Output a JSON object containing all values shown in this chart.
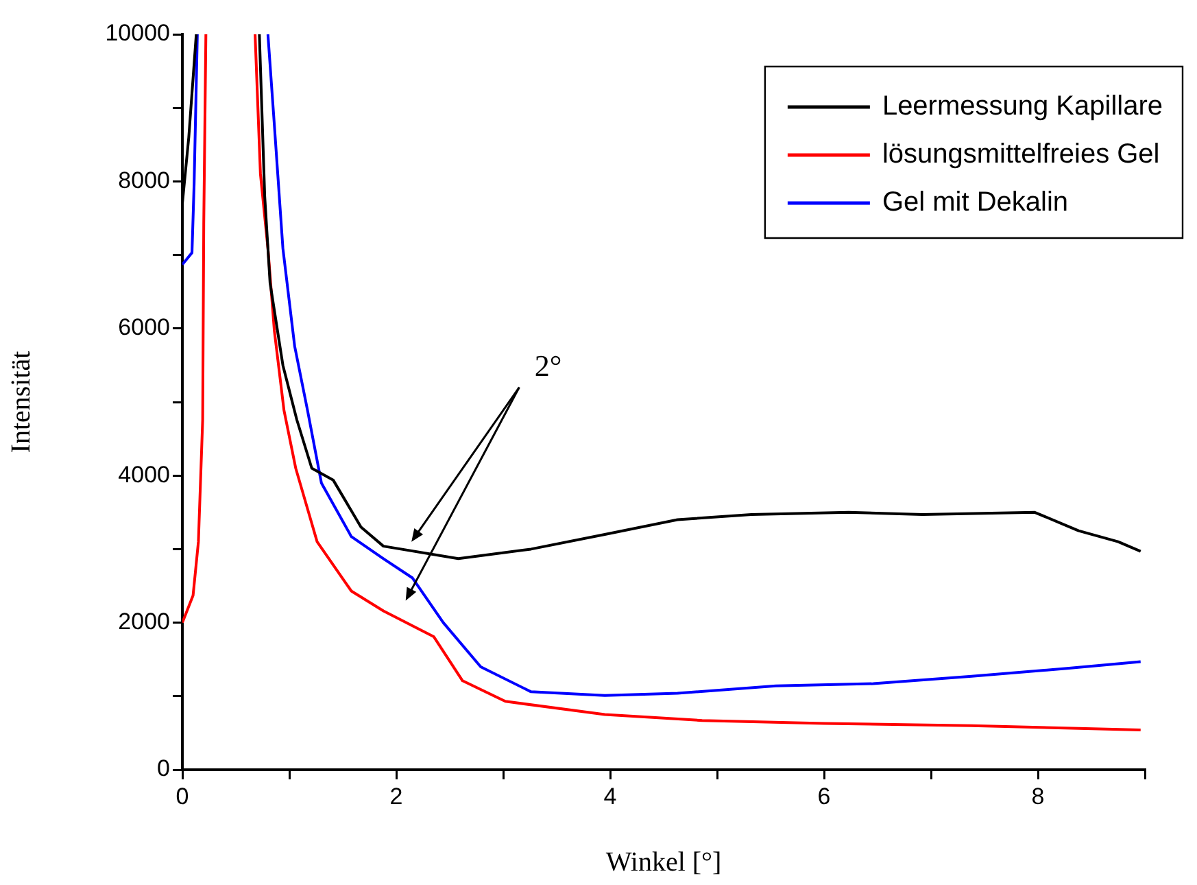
{
  "chart_data": {
    "type": "line",
    "xlabel": "Winkel [°]",
    "ylabel": "Intensität",
    "xlim": [
      0,
      9
    ],
    "xticks": [
      0,
      {
        "value": 1,
        "label": null
      },
      2,
      {
        "value": 3,
        "label": null
      },
      4,
      {
        "value": 5,
        "label": null
      },
      6,
      {
        "value": 7,
        "label": null
      },
      8,
      {
        "value": 9,
        "label": null
      }
    ],
    "ylim": [
      0,
      10000
    ],
    "yticks": [
      0,
      {
        "value": 1000,
        "label": null
      },
      2000,
      {
        "value": 3000,
        "label": null
      },
      4000,
      {
        "value": 5000,
        "label": null
      },
      6000,
      {
        "value": 7000,
        "label": null
      },
      8000,
      {
        "value": 9000,
        "label": null
      },
      10000
    ],
    "grid": false,
    "legend": "top right",
    "marker": "none",
    "line_style": "solid",
    "annotations": [
      "2°"
    ],
    "series": [
      {
        "name": "Leermessung Kapillare",
        "color": "#000000",
        "x": [
          0,
          0.06,
          0.13,
          0.4,
          0.72,
          0.77,
          0.82,
          0.94,
          1.07,
          1.21,
          1.41,
          1.67,
          1.88,
          2.58,
          3.26,
          3.95,
          4.63,
          5.32,
          6.23,
          6.92,
          7.97,
          8.38,
          8.75,
          8.96
        ],
        "values": [
          7700,
          8600,
          10000,
          null,
          10000,
          7800,
          6620,
          5500,
          4760,
          4100,
          3940,
          3300,
          3040,
          2870,
          3000,
          3200,
          3400,
          3470,
          3500,
          3470,
          3500,
          3250,
          3100,
          2970
        ]
      },
      {
        "name": "lösungsmittelfreies Gel",
        "color": "#ff0000",
        "x": [
          0,
          0.1,
          0.15,
          0.19,
          0.2,
          0.22,
          0.45,
          0.68,
          0.73,
          0.8,
          0.86,
          0.95,
          1.06,
          1.26,
          1.58,
          1.88,
          2.35,
          2.62,
          3.02,
          3.95,
          4.86,
          6.0,
          7.38,
          8.96
        ],
        "values": [
          2000,
          2370,
          3100,
          4760,
          7420,
          10000,
          null,
          10000,
          8100,
          7090,
          5970,
          4890,
          4100,
          3100,
          2430,
          2160,
          1810,
          1210,
          930,
          750,
          670,
          630,
          600,
          540
        ]
      },
      {
        "name": "Gel mit Dekalin",
        "color": "#0000ff",
        "x": [
          0,
          0.09,
          0.11,
          0.14,
          0.45,
          0.8,
          0.86,
          0.94,
          1.05,
          1.17,
          1.3,
          1.58,
          1.88,
          2.15,
          2.44,
          2.79,
          3.26,
          3.95,
          4.63,
          5.55,
          6.46,
          7.38,
          8.29,
          8.96
        ],
        "values": [
          6870,
          7030,
          7970,
          10000,
          null,
          10000,
          8770,
          7090,
          5760,
          4890,
          3900,
          3170,
          2870,
          2610,
          2000,
          1400,
          1060,
          1010,
          1040,
          1140,
          1170,
          1270,
          1380,
          1470
        ]
      }
    ]
  }
}
